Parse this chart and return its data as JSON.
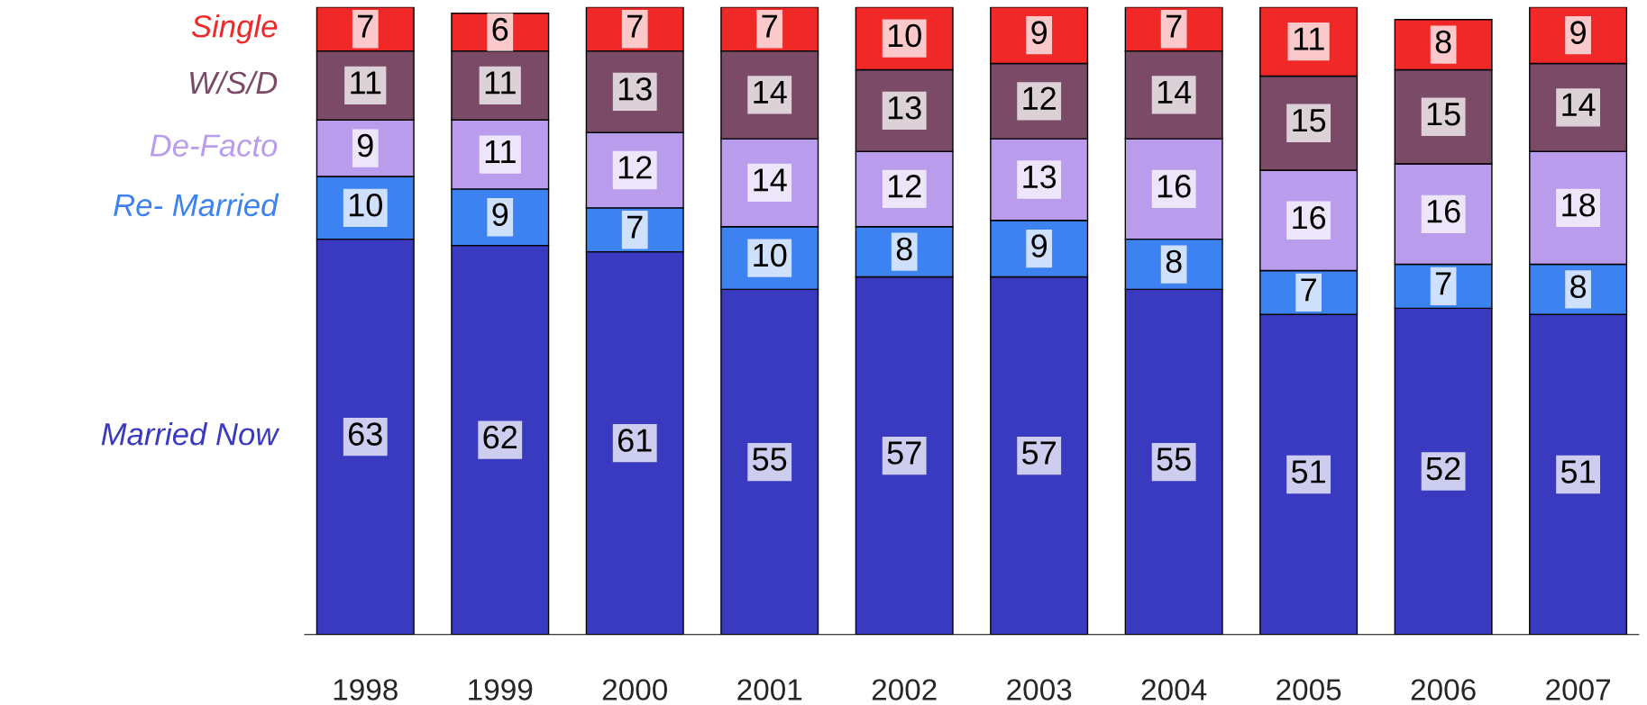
{
  "chart_data": {
    "type": "bar",
    "stacked": true,
    "data_labels": true,
    "legend": false,
    "grid": false,
    "categories": [
      "1998",
      "1999",
      "2000",
      "2001",
      "2002",
      "2003",
      "2004",
      "2005",
      "2006",
      "2007"
    ],
    "series": [
      {
        "name": "Married Now",
        "color": "#3a3ac0",
        "values": [
          63,
          62,
          61,
          55,
          57,
          57,
          55,
          51,
          52,
          51
        ]
      },
      {
        "name": "Re- Married",
        "color": "#3c82f0",
        "values": [
          10,
          9,
          7,
          10,
          8,
          9,
          8,
          7,
          7,
          8
        ]
      },
      {
        "name": "De-Facto",
        "color": "#b99cec",
        "values": [
          9,
          11,
          12,
          14,
          12,
          13,
          16,
          16,
          16,
          18
        ]
      },
      {
        "name": "W/S/D",
        "color": "#7a4a66",
        "values": [
          11,
          11,
          13,
          14,
          13,
          12,
          14,
          15,
          15,
          14
        ]
      },
      {
        "name": "Single",
        "color": "#f02828",
        "values": [
          7,
          6,
          7,
          7,
          10,
          9,
          7,
          11,
          8,
          9
        ]
      }
    ]
  }
}
